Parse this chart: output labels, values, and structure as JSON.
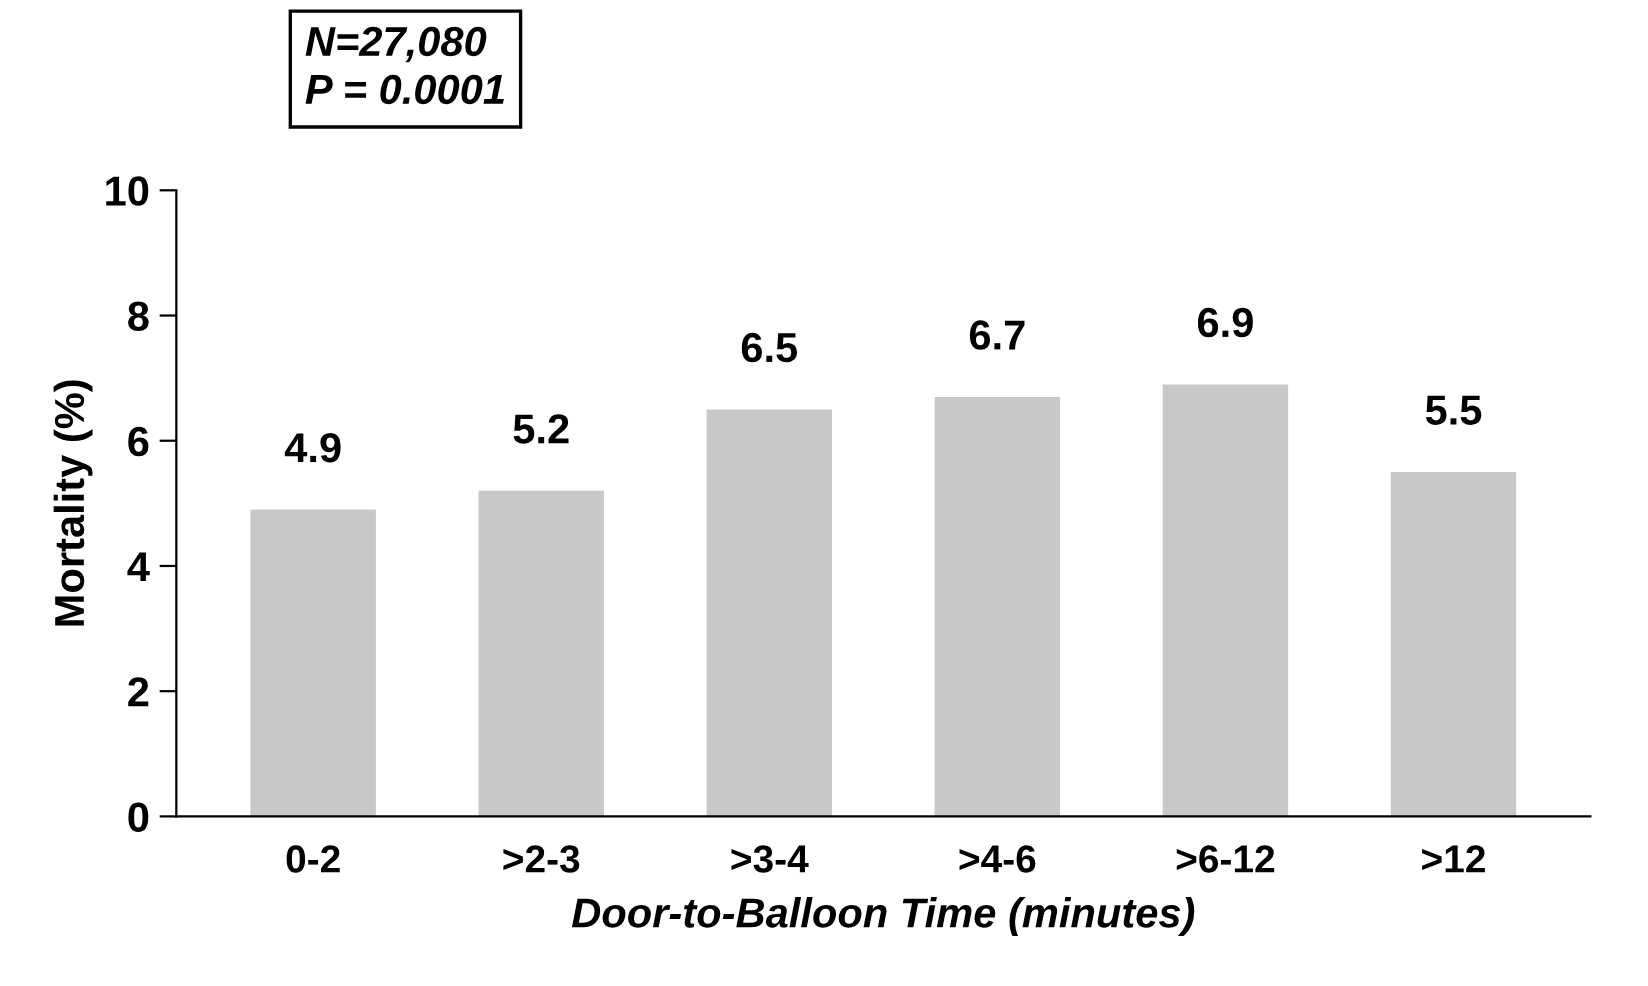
{
  "chart_data": {
    "type": "bar",
    "categories": [
      "0-2",
      ">2-3",
      ">3-4",
      ">4-6",
      ">6-12",
      ">12"
    ],
    "values": [
      4.9,
      5.2,
      6.5,
      6.7,
      6.9,
      5.5
    ],
    "color": "#c8c8c8",
    "xlabel": "Door-to-Balloon Time (minutes)",
    "ylabel": "Mortality (%)",
    "ylim": [
      0,
      10
    ],
    "yticks": [
      0,
      2,
      4,
      6,
      8,
      10
    ],
    "data_labels": true,
    "grid": false,
    "legend": false,
    "annotations": [
      "N=27,080\nP = 0.0001"
    ]
  }
}
